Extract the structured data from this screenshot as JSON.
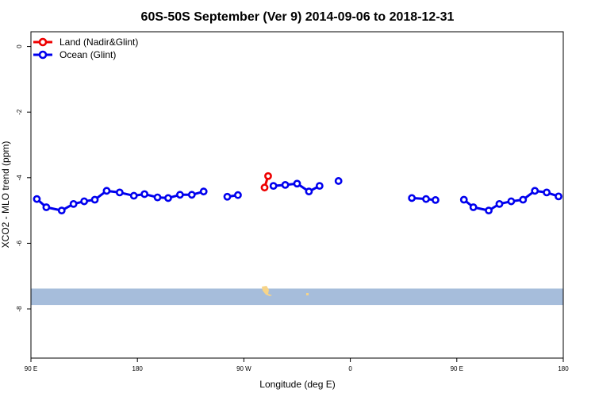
{
  "chart_data": {
    "type": "line",
    "title": "60S-50S September (Ver 9)   2014-09-06 to 2018-12-31",
    "xlabel": "Longitude (deg E)",
    "ylabel": "XCO2 - MLO trend (ppm)",
    "xlim": [
      90,
      540
    ],
    "ylim": [
      -9.5,
      0.45
    ],
    "x_ticks": [
      {
        "value": 90,
        "label": "90 E"
      },
      {
        "value": 180,
        "label": "180"
      },
      {
        "value": 270,
        "label": "90 W"
      },
      {
        "value": 360,
        "label": "0"
      },
      {
        "value": 450,
        "label": "90 E"
      },
      {
        "value": 540,
        "label": "180"
      }
    ],
    "y_ticks": [
      {
        "value": 0,
        "label": "0"
      },
      {
        "value": -2,
        "label": "-2"
      },
      {
        "value": -4,
        "label": "-4"
      },
      {
        "value": -6,
        "label": "-6"
      },
      {
        "value": -8,
        "label": "-8"
      }
    ],
    "legend_position": "top-left",
    "series": [
      {
        "name": "Land (Nadir&Glint)",
        "color": "#ee0000",
        "segments": [
          [
            [
              287.5,
              -4.3
            ],
            [
              290.5,
              -3.95
            ]
          ]
        ]
      },
      {
        "name": "Ocean (Glint)",
        "color": "#0000ee",
        "segments": [
          [
            [
              95,
              -4.65
            ],
            [
              103,
              -4.9
            ],
            [
              116,
              -5.0
            ],
            [
              126,
              -4.8
            ],
            [
              135,
              -4.72
            ],
            [
              144,
              -4.67
            ],
            [
              154,
              -4.4
            ],
            [
              165,
              -4.45
            ],
            [
              177,
              -4.55
            ],
            [
              186,
              -4.5
            ],
            [
              197,
              -4.6
            ],
            [
              206,
              -4.62
            ],
            [
              216,
              -4.52
            ],
            [
              226,
              -4.52
            ],
            [
              236,
              -4.42
            ]
          ],
          [
            [
              256,
              -4.58
            ],
            [
              265,
              -4.53
            ]
          ],
          [
            [
              295,
              -4.25
            ],
            [
              305,
              -4.22
            ],
            [
              315,
              -4.18
            ],
            [
              325,
              -4.42
            ],
            [
              334,
              -4.25
            ]
          ],
          [
            [
              350,
              -4.1
            ]
          ],
          [
            [
              412,
              -4.62
            ],
            [
              424,
              -4.65
            ],
            [
              432,
              -4.68
            ]
          ],
          [
            [
              456,
              -4.67
            ],
            [
              464,
              -4.9
            ],
            [
              477,
              -5.0
            ],
            [
              486,
              -4.8
            ],
            [
              496,
              -4.72
            ],
            [
              506,
              -4.67
            ],
            [
              516,
              -4.4
            ],
            [
              526,
              -4.45
            ],
            [
              536,
              -4.57
            ]
          ]
        ]
      }
    ],
    "map_strip": {
      "y_range": [
        -7.38,
        -7.88
      ],
      "ocean_color": "#a6bddb",
      "land_color": "#f7d488"
    }
  }
}
